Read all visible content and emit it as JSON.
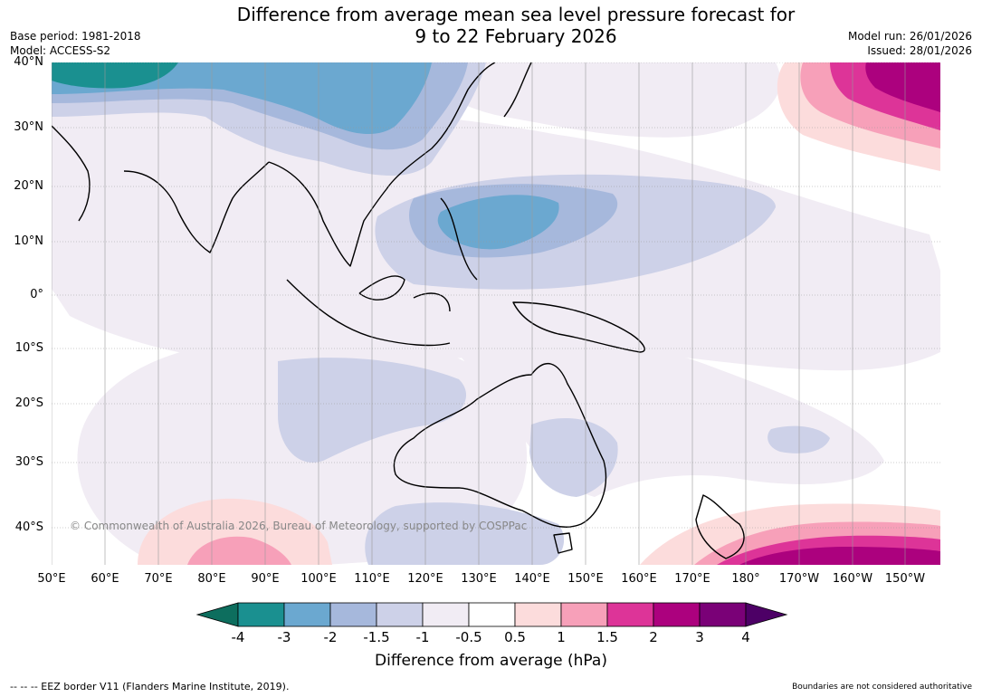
{
  "title": {
    "line1": "Difference from average mean sea level pressure forecast for",
    "line2": "9 to 22 February 2026"
  },
  "meta_left": {
    "base_period": "Base period: 1981-2018",
    "model": "Model: ACCESS-S2"
  },
  "meta_right": {
    "model_run": "Model run: 26/01/2026",
    "issued": "Issued: 28/01/2026"
  },
  "map": {
    "lat_labels": [
      "40°N",
      "30°N",
      "20°N",
      "10°N",
      "0°",
      "10°S",
      "20°S",
      "30°S",
      "40°S"
    ],
    "lon_labels": [
      "50°E",
      "60°E",
      "70°E",
      "80°E",
      "90°E",
      "100°E",
      "110°E",
      "120°E",
      "130°E",
      "140°E",
      "150°E",
      "160°E",
      "170°E",
      "180°",
      "170°W",
      "160°W",
      "150°W"
    ],
    "copyright": "© Commonwealth of Australia 2026, Bureau of Meteorology, supported by COSPPac",
    "anomaly_regions": [
      {
        "region": "Central Asia / Tibet",
        "level": "-3 to -2"
      },
      {
        "region": "Philippine Sea",
        "level": "-2 to -1.5"
      },
      {
        "region": "Southern Indian Ocean",
        "level": "-1.5 to -1"
      },
      {
        "region": "Central Australia",
        "level": "-1.5 to -1"
      },
      {
        "region": "North Pacific (NE corner)",
        "level": "2 to 3+"
      },
      {
        "region": "Tasman Sea / south of New Zealand",
        "level": "2 to 3+"
      },
      {
        "region": "Southern Indian Ocean (SW corner)",
        "level": "1 to 1.5"
      }
    ]
  },
  "colorbar": {
    "title": "Difference from average (hPa)",
    "ticks": [
      "-4",
      "-3",
      "-2",
      "-1.5",
      "-1",
      "-0.5",
      "0.5",
      "1",
      "1.5",
      "2",
      "3",
      "4"
    ],
    "colors": [
      "#1a9090",
      "#6ba8d0",
      "#a6b8dc",
      "#cdd1e8",
      "#f1ecf4",
      "#ffffff",
      "#fcdcdc",
      "#f7a0b9",
      "#dd3498",
      "#ac017e",
      "#7a0177"
    ],
    "low_extension_color": "#0d6e5e",
    "high_extension_color": "#4d0066"
  },
  "footer": {
    "eez_note": "--  --  -- EEZ border V11 (Flanders Marine Institute, 2019).",
    "boundaries_note": "Boundaries are not considered authoritative"
  }
}
